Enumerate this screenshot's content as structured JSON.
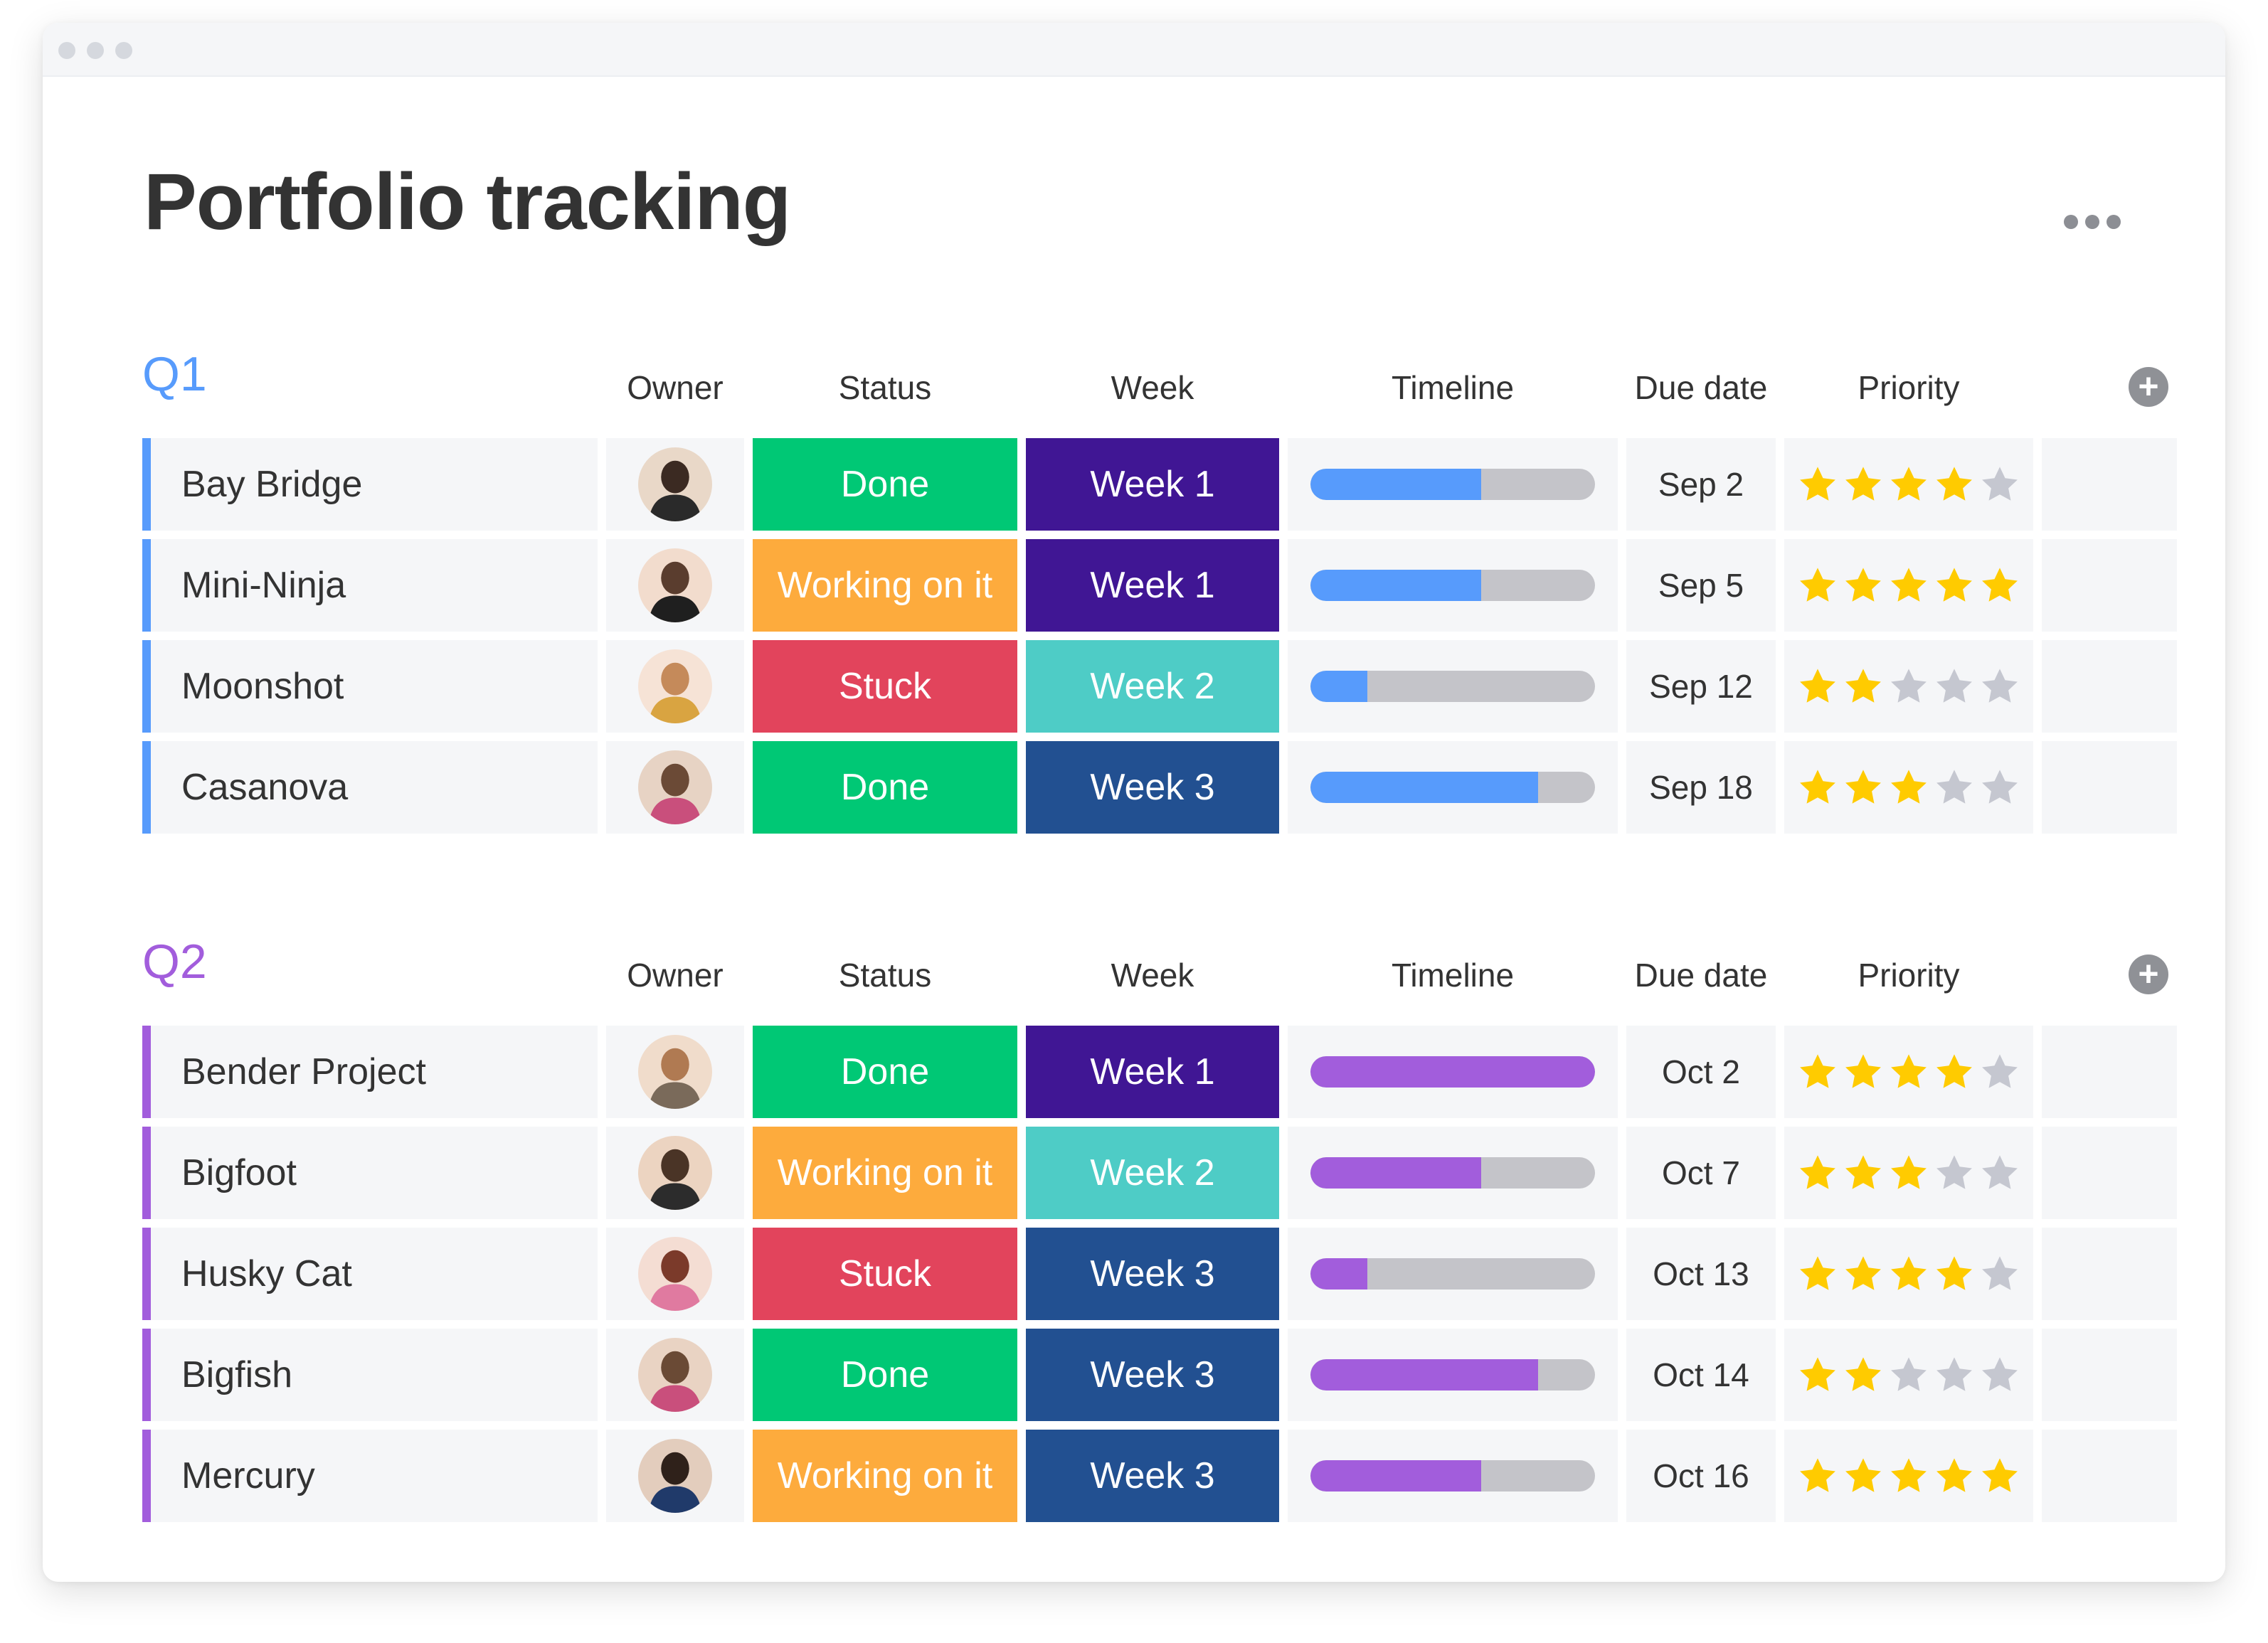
{
  "page": {
    "title": "Portfolio tracking"
  },
  "columns": {
    "owner": "Owner",
    "status": "Status",
    "week": "Week",
    "timeline": "Timeline",
    "due": "Due date",
    "priority": "Priority"
  },
  "colors": {
    "done": "#00c875",
    "working": "#fdab3d",
    "stuck": "#e2445c",
    "week_dark_purple": "#401694",
    "week_teal": "#4eccc6",
    "week_navy": "#225091",
    "timeline_blue": "#579bfc",
    "timeline_purple": "#a25ddc",
    "timeline_empty": "#c4c4c9",
    "star_on": "#ffcb00",
    "star_off": "#c5c7d0"
  },
  "groups": [
    {
      "title": "Q1",
      "color": "#579bfc",
      "rows": [
        {
          "name": "Bay Bridge",
          "owner_icon": "avatar-icon",
          "status": "Done",
          "status_color": "#00c875",
          "week": "Week 1",
          "week_color": "#401694",
          "timeline_progress": 0.6,
          "due": "Sep 2",
          "priority": 4
        },
        {
          "name": "Mini-Ninja",
          "owner_icon": "avatar-icon",
          "status": "Working on it",
          "status_color": "#fdab3d",
          "week": "Week 1",
          "week_color": "#401694",
          "timeline_progress": 0.6,
          "due": "Sep 5",
          "priority": 5
        },
        {
          "name": "Moonshot",
          "owner_icon": "avatar-icon",
          "status": "Stuck",
          "status_color": "#e2445c",
          "week": "Week 2",
          "week_color": "#4eccc6",
          "timeline_progress": 0.2,
          "due": "Sep 12",
          "priority": 2
        },
        {
          "name": "Casanova",
          "owner_icon": "avatar-icon",
          "status": "Done",
          "status_color": "#00c875",
          "week": "Week 3",
          "week_color": "#225091",
          "timeline_progress": 0.8,
          "due": "Sep 18",
          "priority": 3
        }
      ]
    },
    {
      "title": "Q2",
      "color": "#a25ddc",
      "rows": [
        {
          "name": "Bender Project",
          "owner_icon": "avatar-icon",
          "status": "Done",
          "status_color": "#00c875",
          "week": "Week 1",
          "week_color": "#401694",
          "timeline_progress": 1.0,
          "due": "Oct 2",
          "priority": 4
        },
        {
          "name": "Bigfoot",
          "owner_icon": "avatar-icon",
          "status": "Working on it",
          "status_color": "#fdab3d",
          "week": "Week 2",
          "week_color": "#4eccc6",
          "timeline_progress": 0.6,
          "due": "Oct 7",
          "priority": 3
        },
        {
          "name": "Husky Cat",
          "owner_icon": "avatar-icon",
          "status": "Stuck",
          "status_color": "#e2445c",
          "week": "Week 3",
          "week_color": "#225091",
          "timeline_progress": 0.2,
          "due": "Oct 13",
          "priority": 4
        },
        {
          "name": "Bigfish",
          "owner_icon": "avatar-icon",
          "status": "Done",
          "status_color": "#00c875",
          "week": "Week 3",
          "week_color": "#225091",
          "timeline_progress": 0.8,
          "due": "Oct 14",
          "priority": 2
        },
        {
          "name": "Mercury",
          "owner_icon": "avatar-icon",
          "status": "Working on it",
          "status_color": "#fdab3d",
          "week": "Week 3",
          "week_color": "#225091",
          "timeline_progress": 0.6,
          "due": "Oct 16",
          "priority": 5
        }
      ]
    }
  ]
}
